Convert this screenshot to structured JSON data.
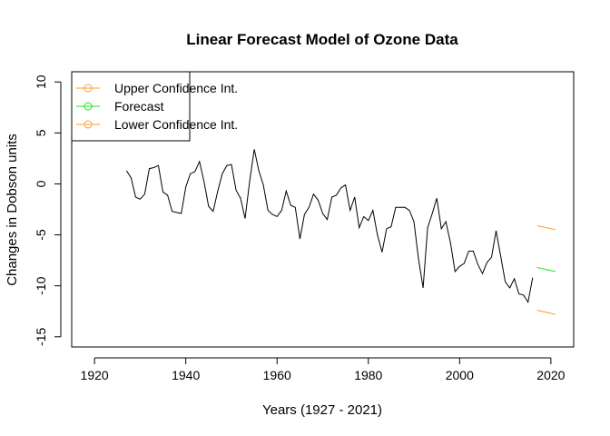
{
  "chart_data": {
    "type": "line",
    "title": "Linear Forecast Model of Ozone Data",
    "xlabel": "Years (1927 - 2021)",
    "ylabel": "Changes in Dobson units",
    "xlim": [
      1915,
      2025
    ],
    "ylim": [
      -16,
      11
    ],
    "x_ticks": [
      1920,
      1940,
      1960,
      1980,
      2000,
      2020
    ],
    "y_ticks": [
      10,
      5,
      0,
      -5,
      -10,
      -15
    ],
    "legend": "top-left",
    "grid": false,
    "observed": {
      "color": "#000000",
      "x": [
        1927,
        1928,
        1929,
        1930,
        1931,
        1932,
        1933,
        1934,
        1935,
        1936,
        1937,
        1938,
        1939,
        1940,
        1941,
        1942,
        1943,
        1944,
        1945,
        1946,
        1947,
        1948,
        1949,
        1950,
        1951,
        1952,
        1953,
        1954,
        1955,
        1956,
        1957,
        1958,
        1959,
        1960,
        1961,
        1962,
        1963,
        1964,
        1965,
        1966,
        1967,
        1968,
        1969,
        1970,
        1971,
        1972,
        1973,
        1974,
        1975,
        1976,
        1977,
        1978,
        1979,
        1980,
        1981,
        1982,
        1983,
        1984,
        1985,
        1986,
        1987,
        1988,
        1989,
        1990,
        1991,
        1992,
        1993,
        1994,
        1995,
        1996,
        1997,
        1998,
        1999,
        2000,
        2001,
        2002,
        2003,
        2004,
        2005,
        2006,
        2007,
        2008,
        2009,
        2010,
        2011,
        2012,
        2013,
        2014,
        2015,
        2016
      ],
      "y": [
        1.3,
        0.6,
        -1.3,
        -1.5,
        -1.0,
        1.5,
        1.6,
        1.8,
        -0.8,
        -1.1,
        -2.7,
        -2.8,
        -2.9,
        -0.3,
        1.0,
        1.2,
        2.2,
        0.2,
        -2.2,
        -2.7,
        -0.7,
        1.0,
        1.8,
        1.9,
        -0.6,
        -1.4,
        -3.4,
        0.3,
        3.4,
        1.3,
        -0.1,
        -2.6,
        -3.0,
        -3.2,
        -2.6,
        -0.7,
        -2.1,
        -2.3,
        -5.4,
        -3.0,
        -2.3,
        -1.0,
        -1.6,
        -2.9,
        -3.5,
        -1.3,
        -1.1,
        -0.4,
        -0.1,
        -2.6,
        -1.3,
        -4.3,
        -3.2,
        -3.6,
        -2.6,
        -5.0,
        -6.7,
        -4.4,
        -4.2,
        -2.3,
        -2.3,
        -2.3,
        -2.6,
        -3.7,
        -7.4,
        -10.2,
        -4.3,
        -2.9,
        -1.4,
        -4.4,
        -3.7,
        -5.8,
        -8.6,
        -8.1,
        -7.8,
        -6.6,
        -6.6,
        -7.9,
        -8.8,
        -7.7,
        -7.2,
        -4.6,
        -7.1,
        -9.6,
        -10.2,
        -9.3,
        -10.8,
        -10.9,
        -11.6,
        -9.2
      ]
    },
    "series": [
      {
        "name": "Upper Confidence Int.",
        "color": "#ff9a2f",
        "x": [
          2017,
          2021
        ],
        "y": [
          -4.1,
          -4.5
        ]
      },
      {
        "name": "Forecast",
        "color": "#1ee81e",
        "x": [
          2017,
          2021
        ],
        "y": [
          -8.2,
          -8.6
        ]
      },
      {
        "name": "Lower Confidence Int.",
        "color": "#ff9a2f",
        "x": [
          2017,
          2021
        ],
        "y": [
          -12.4,
          -12.8
        ]
      }
    ]
  }
}
